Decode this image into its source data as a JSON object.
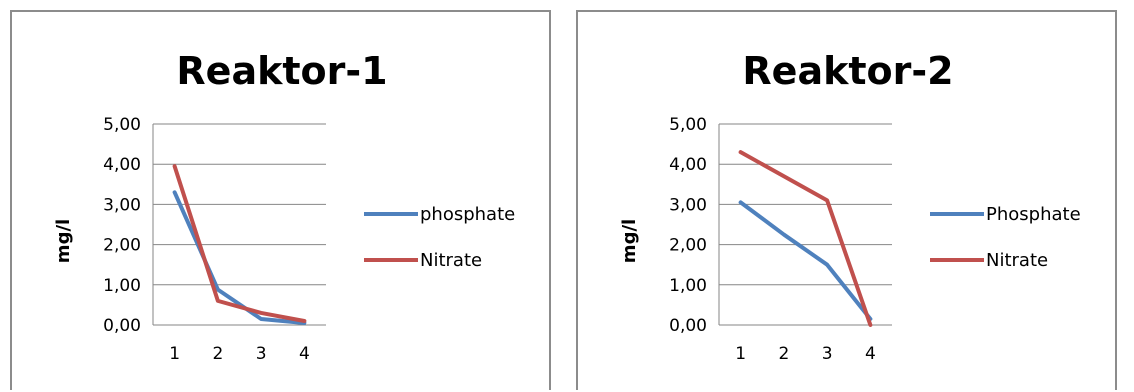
{
  "chart_data": [
    {
      "type": "line",
      "title": "Reaktor-1",
      "xlabel": "",
      "ylabel": "mg/l",
      "categories": [
        "1",
        "2",
        "3",
        "4"
      ],
      "ylim": [
        0,
        5
      ],
      "yticks": [
        "0,00",
        "1,00",
        "2,00",
        "3,00",
        "4,00",
        "5,00"
      ],
      "grid": true,
      "legend": "right",
      "series": [
        {
          "name": "phosphate",
          "color": "#4f81bd",
          "values": [
            3.3,
            0.88,
            0.15,
            0.05
          ]
        },
        {
          "name": "Nitrate",
          "color": "#c0504d",
          "values": [
            3.95,
            0.6,
            0.3,
            0.1
          ]
        }
      ]
    },
    {
      "type": "line",
      "title": "Reaktor-2",
      "xlabel": "",
      "ylabel": "mg/l",
      "categories": [
        "1",
        "2",
        "3",
        "4"
      ],
      "ylim": [
        0,
        5
      ],
      "yticks": [
        "0,00",
        "1,00",
        "2,00",
        "3,00",
        "4,00",
        "5,00"
      ],
      "grid": true,
      "legend": "right",
      "series": [
        {
          "name": "Phosphate",
          "color": "#4f81bd",
          "values": [
            3.05,
            2.25,
            1.5,
            0.15
          ]
        },
        {
          "name": "Nitrate",
          "color": "#c0504d",
          "values": [
            4.3,
            3.7,
            3.1,
            0.0
          ]
        }
      ]
    }
  ]
}
